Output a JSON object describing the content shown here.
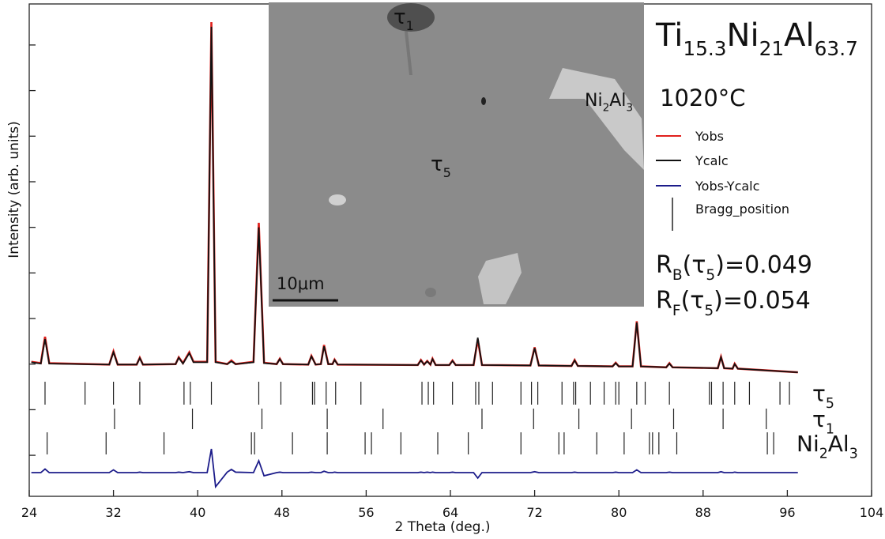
{
  "chart_data": {
    "type": "line",
    "xlabel": "2 Theta (deg.)",
    "ylabel": "Intensity (arb. units)",
    "xlim": [
      24,
      104
    ],
    "xticks": [
      24,
      32,
      40,
      48,
      56,
      64,
      72,
      80,
      88,
      96,
      104
    ],
    "ylim": [
      0,
      108
    ],
    "yticks": [
      9,
      19,
      29,
      39,
      49,
      59,
      69,
      79,
      89,
      99
    ],
    "y_tick_labels": false,
    "x": [
      24.2,
      25.1,
      25.5,
      25.9,
      31.6,
      32.0,
      32.4,
      34.2,
      34.5,
      34.8,
      37.9,
      38.2,
      38.6,
      39.2,
      39.6,
      40.9,
      41.3,
      41.7,
      42.8,
      43.2,
      43.6,
      45.3,
      45.8,
      46.3,
      47.5,
      47.8,
      48.1,
      50.5,
      50.8,
      51.2,
      51.7,
      52.0,
      52.4,
      52.8,
      53.0,
      53.3,
      60.9,
      61.2,
      61.5,
      61.8,
      62.1,
      62.3,
      62.6,
      63.9,
      64.2,
      64.5,
      66.2,
      66.6,
      67.0,
      71.6,
      72.0,
      72.4,
      75.5,
      75.8,
      76.1,
      79.4,
      79.7,
      80.0,
      81.3,
      81.7,
      82.1,
      84.5,
      84.8,
      85.1,
      89.4,
      89.7,
      90.0,
      90.8,
      91.0,
      91.3,
      97.0
    ],
    "series": [
      {
        "name": "Yobs",
        "color": "#e0201c",
        "values": [
          29.5,
          29.2,
          35,
          29.2,
          28.9,
          31.8,
          28.9,
          28.9,
          30.4,
          28.9,
          29,
          30.5,
          29.2,
          31.6,
          29.5,
          29.5,
          104,
          29.5,
          29,
          29.8,
          29,
          29.5,
          60,
          29.3,
          29,
          30.2,
          29,
          28.9,
          30.8,
          28.9,
          29,
          33.2,
          29,
          29,
          30,
          28.9,
          28.8,
          29.9,
          28.9,
          29.7,
          28.9,
          30.2,
          28.8,
          28.8,
          29.8,
          28.8,
          28.8,
          34.4,
          28.8,
          28.7,
          32.7,
          28.7,
          28.6,
          29.9,
          28.6,
          28.5,
          29.3,
          28.5,
          28.5,
          38.4,
          28.5,
          28.3,
          29.2,
          28.3,
          28.1,
          30.6,
          28.1,
          28,
          29.1,
          28,
          27.2
        ]
      },
      {
        "name": "Ycalc",
        "color": "#111111",
        "values": [
          29.4,
          29.1,
          34.5,
          29.1,
          28.9,
          31.6,
          28.9,
          28.9,
          30.3,
          28.9,
          29,
          30.4,
          29.1,
          31.4,
          29.4,
          29.4,
          103,
          29.4,
          29,
          29.6,
          29,
          29.4,
          59,
          29.2,
          29,
          30.1,
          29,
          28.9,
          30.7,
          28.9,
          29,
          32.9,
          29,
          29,
          29.9,
          28.9,
          28.8,
          29.8,
          28.9,
          29.6,
          28.9,
          30.1,
          28.8,
          28.8,
          29.7,
          28.8,
          28.8,
          34.8,
          28.8,
          28.7,
          32.5,
          28.7,
          28.6,
          29.8,
          28.6,
          28.5,
          29.2,
          28.5,
          28.5,
          38.1,
          28.5,
          28.3,
          29.1,
          28.3,
          28.1,
          30.5,
          28.1,
          28,
          29,
          28,
          27.2
        ]
      },
      {
        "name": "Yobs-Ycalc",
        "color": "#1c1c8a",
        "values": [
          5.2,
          5.2,
          6,
          5.2,
          5.2,
          5.8,
          5.2,
          5.2,
          5.3,
          5.2,
          5.2,
          5.3,
          5.2,
          5.4,
          5.2,
          5.2,
          10.4,
          2.1,
          5.3,
          5.9,
          5.3,
          5.2,
          7.8,
          4.5,
          5.2,
          5.3,
          5.2,
          5.2,
          5.3,
          5.2,
          5.2,
          5.5,
          5.2,
          5.2,
          5.3,
          5.2,
          5.2,
          5.3,
          5.2,
          5.3,
          5.2,
          5.3,
          5.2,
          5.2,
          5.3,
          5.2,
          5.2,
          4,
          5.2,
          5.2,
          5.4,
          5.2,
          5.2,
          5.3,
          5.2,
          5.2,
          5.3,
          5.2,
          5.2,
          5.8,
          5.2,
          5.2,
          5.3,
          5.2,
          5.2,
          5.4,
          5.2,
          5.2,
          5.3,
          5.2,
          5.2
        ]
      }
    ],
    "bragg": {
      "name": "Bragg_position",
      "phases": [
        {
          "label": [
            "τ",
            "5"
          ],
          "positions": [
            25.5,
            29.3,
            32.0,
            34.5,
            38.7,
            39.3,
            41.3,
            45.8,
            47.9,
            50.9,
            51.1,
            52.2,
            53.1,
            55.5,
            61.3,
            61.9,
            62.4,
            64.2,
            66.4,
            66.7,
            68.0,
            70.7,
            71.7,
            72.3,
            74.6,
            75.7,
            75.9,
            77.3,
            78.6,
            79.7,
            80.0,
            81.7,
            82.5,
            84.8,
            88.6,
            88.8,
            89.9,
            91.0,
            92.4,
            95.3,
            96.2
          ]
        },
        {
          "label": [
            "τ",
            "1"
          ],
          "positions": [
            32.1,
            39.5,
            46.1,
            52.3,
            57.6,
            67.0,
            71.9,
            76.2,
            81.2,
            85.2,
            89.9,
            94.0
          ]
        },
        {
          "label": [
            "Ni",
            "2",
            "Al",
            "3"
          ],
          "positions": [
            25.7,
            31.3,
            36.8,
            45.1,
            45.4,
            49.0,
            52.3,
            55.9,
            56.5,
            59.3,
            62.8,
            65.7,
            70.7,
            74.3,
            74.8,
            77.9,
            80.5,
            82.9,
            83.2,
            83.8,
            85.5,
            94.1,
            94.7
          ]
        }
      ]
    },
    "composition": [
      "Ti",
      "15.3",
      "Ni",
      "21",
      "Al",
      "63.7"
    ],
    "temperature": "1020°C",
    "fit_factors": [
      [
        "R",
        "B",
        "(τ",
        "5",
        ")=0.049"
      ],
      [
        "R",
        "F",
        "(τ",
        "5",
        ")=0.054"
      ]
    ],
    "inset": {
      "labels": [
        [
          "τ",
          "1"
        ],
        [
          "Ni",
          "2",
          "Al",
          "3"
        ],
        [
          "τ",
          "5"
        ]
      ],
      "scale_bar": "10μm"
    }
  }
}
